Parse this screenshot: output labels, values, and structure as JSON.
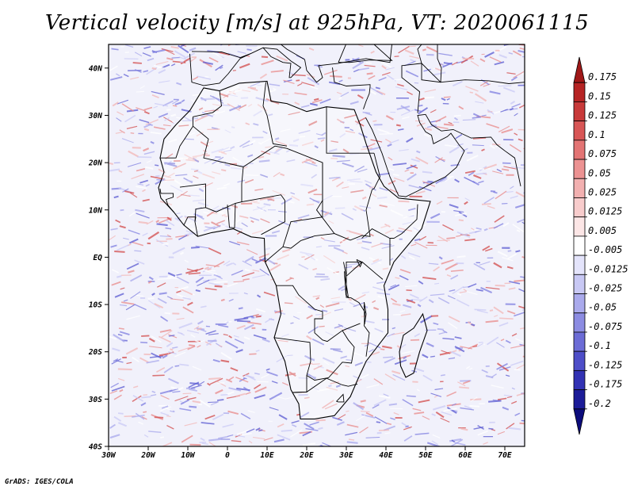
{
  "title": "Vertical velocity [m/s] at 925hPa, VT: 2020061115",
  "credit": "GrADS: IGES/COLA",
  "map": {
    "lat_ticks": [
      "40N",
      "30N",
      "20N",
      "10N",
      "EQ",
      "10S",
      "20S",
      "30S",
      "40S"
    ],
    "lon_ticks": [
      "30W",
      "20W",
      "10W",
      "0",
      "10E",
      "20E",
      "30E",
      "40E",
      "50E",
      "60E",
      "70E"
    ],
    "lon_range": [
      -30,
      75
    ],
    "lat_range": [
      -40,
      45
    ]
  },
  "colorbar": {
    "labels": [
      "0.175",
      "0.15",
      "0.125",
      "0.1",
      "0.075",
      "0.05",
      "0.025",
      "0.0125",
      "0.005",
      "-0.005",
      "-0.0125",
      "-0.025",
      "-0.05",
      "-0.075",
      "-0.1",
      "-0.125",
      "-0.175",
      "-0.2"
    ],
    "colors": [
      "#a01818",
      "#b62424",
      "#c83a3a",
      "#d85656",
      "#e37474",
      "#ec9292",
      "#f2b0b0",
      "#f8cccc",
      "#fce6e6",
      "#ffffff",
      "#e4e4fb",
      "#c8c8f4",
      "#aaaaec",
      "#8c8ce2",
      "#6c6cd6",
      "#4e4ec8",
      "#3232b4",
      "#1c1c98",
      "#0c0c7c"
    ]
  },
  "legend_colors": {
    "frame": "#000000",
    "land_outline": "#000000"
  }
}
